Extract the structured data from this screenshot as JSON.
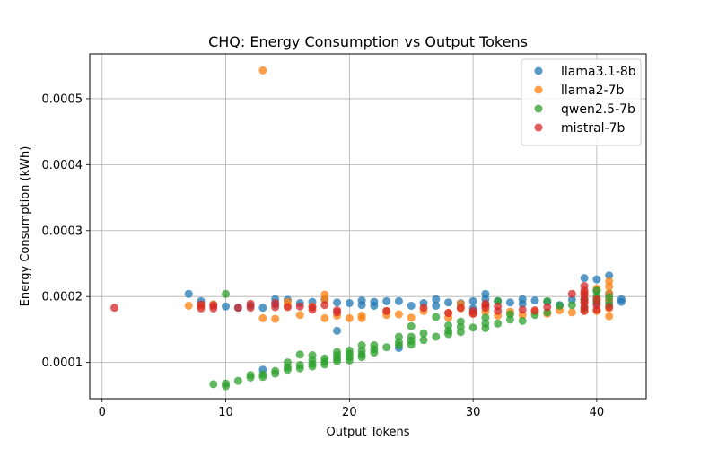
{
  "chart_data": {
    "type": "scatter",
    "title": "CHQ: Energy Consumption vs Output Tokens",
    "xlabel": "Output Tokens",
    "ylabel": "Energy Consumption (kWh)",
    "xlim": [
      -1,
      44
    ],
    "ylim": [
      4.5e-05,
      0.000568
    ],
    "xticks": [
      0,
      10,
      20,
      30,
      40
    ],
    "xtick_labels": [
      "0",
      "10",
      "20",
      "30",
      "40"
    ],
    "yticks": [
      0.0001,
      0.0002,
      0.0003,
      0.0004,
      0.0005
    ],
    "ytick_labels": [
      "0.0001",
      "0.0002",
      "0.0003",
      "0.0004",
      "0.0005"
    ],
    "grid": true,
    "legend_position": "top-right",
    "series": [
      {
        "name": "llama3.1-8b",
        "color": "#1f77b4",
        "points": [
          [
            7,
            0.000204
          ],
          [
            8,
            0.000193
          ],
          [
            9,
            0.000188
          ],
          [
            10,
            0.000185
          ],
          [
            11,
            0.000183
          ],
          [
            12,
            0.000186
          ],
          [
            13,
            0.000183
          ],
          [
            13,
            8.9e-05
          ],
          [
            14,
            0.000196
          ],
          [
            14,
            0.000188
          ],
          [
            15,
            0.000195
          ],
          [
            16,
            0.00019
          ],
          [
            17,
            0.000192
          ],
          [
            18,
            0.000196
          ],
          [
            19,
            0.000148
          ],
          [
            19,
            0.000191
          ],
          [
            20,
            0.00019
          ],
          [
            21,
            0.000194
          ],
          [
            21,
            0.000187
          ],
          [
            22,
            0.000192
          ],
          [
            22,
            0.000186
          ],
          [
            23,
            0.000193
          ],
          [
            24,
            0.000193
          ],
          [
            24,
            0.000122
          ],
          [
            25,
            0.000186
          ],
          [
            26,
            0.00019
          ],
          [
            27,
            0.000196
          ],
          [
            27,
            0.000186
          ],
          [
            28,
            0.000191
          ],
          [
            29,
            0.00019
          ],
          [
            30,
            0.000193
          ],
          [
            30,
            0.000182
          ],
          [
            31,
            0.000204
          ],
          [
            31,
            0.000196
          ],
          [
            31,
            0.000187
          ],
          [
            32,
            0.000193
          ],
          [
            33,
            0.000191
          ],
          [
            34,
            0.000196
          ],
          [
            34,
            0.000189
          ],
          [
            35,
            0.000194
          ],
          [
            36,
            0.000192
          ],
          [
            37,
            0.000187
          ],
          [
            38,
            0.000195
          ],
          [
            39,
            0.000228
          ],
          [
            39,
            0.000205
          ],
          [
            39,
            0.000195
          ],
          [
            40,
            0.000226
          ],
          [
            40,
            0.000209
          ],
          [
            40,
            0.00019
          ],
          [
            41,
            0.000232
          ],
          [
            41,
            0.000204
          ],
          [
            41,
            0.000193
          ],
          [
            42,
            0.000196
          ],
          [
            42,
            0.000192
          ]
        ]
      },
      {
        "name": "llama2-7b",
        "color": "#ff7f0e",
        "points": [
          [
            7,
            0.000186
          ],
          [
            8,
            0.000186
          ],
          [
            9,
            0.000188
          ],
          [
            13,
            0.000543
          ],
          [
            13,
            0.000167
          ],
          [
            14,
            0.000166
          ],
          [
            15,
            0.000192
          ],
          [
            15,
            0.000186
          ],
          [
            16,
            0.000172
          ],
          [
            17,
            0.000185
          ],
          [
            18,
            0.000203
          ],
          [
            18,
            0.000195
          ],
          [
            18,
            0.000167
          ],
          [
            19,
            0.000171
          ],
          [
            20,
            0.000167
          ],
          [
            21,
            0.000171
          ],
          [
            21,
            0.000167
          ],
          [
            23,
            0.000178
          ],
          [
            23,
            0.000172
          ],
          [
            24,
            0.000173
          ],
          [
            25,
            0.000168
          ],
          [
            26,
            0.000178
          ],
          [
            28,
            0.000175
          ],
          [
            28,
            0.000168
          ],
          [
            29,
            0.000189
          ],
          [
            29,
            0.000182
          ],
          [
            30,
            0.000174
          ],
          [
            31,
            0.000186
          ],
          [
            31,
            0.000177
          ],
          [
            32,
            0.000171
          ],
          [
            33,
            0.000177
          ],
          [
            34,
            0.000172
          ],
          [
            35,
            0.000177
          ],
          [
            36,
            0.000174
          ],
          [
            37,
            0.000179
          ],
          [
            38,
            0.000176
          ],
          [
            39,
            0.000205
          ],
          [
            39,
            0.000192
          ],
          [
            39,
            0.000179
          ],
          [
            40,
            0.000212
          ],
          [
            40,
            0.000196
          ],
          [
            40,
            0.000178
          ],
          [
            41,
            0.000223
          ],
          [
            41,
            0.000215
          ],
          [
            41,
            0.000205
          ],
          [
            41,
            0.000195
          ],
          [
            41,
            0.000182
          ],
          [
            41,
            0.00017
          ]
        ]
      },
      {
        "name": "qwen2.5-7b",
        "color": "#2ca02c",
        "points": [
          [
            9,
            6.7e-05
          ],
          [
            10,
            0.000204
          ],
          [
            10,
            6.8e-05
          ],
          [
            10,
            6.4e-05
          ],
          [
            11,
            7.2e-05
          ],
          [
            12,
            8.1e-05
          ],
          [
            12,
            7.7e-05
          ],
          [
            13,
            8.2e-05
          ],
          [
            13,
            7.8e-05
          ],
          [
            14,
            8.7e-05
          ],
          [
            14,
            8.3e-05
          ],
          [
            15,
            0.0001
          ],
          [
            15,
            9.3e-05
          ],
          [
            15,
            8.9e-05
          ],
          [
            16,
            0.000112
          ],
          [
            16,
            9.6e-05
          ],
          [
            16,
            9.1e-05
          ],
          [
            17,
            0.000111
          ],
          [
            17,
            0.000104
          ],
          [
            17,
            9.8e-05
          ],
          [
            17,
            9.4e-05
          ],
          [
            18,
            0.000106
          ],
          [
            18,
            0.000101
          ],
          [
            18,
            9.7e-05
          ],
          [
            19,
            0.000116
          ],
          [
            19,
            0.000111
          ],
          [
            19,
            0.000106
          ],
          [
            19,
            0.000102
          ],
          [
            20,
            0.000118
          ],
          [
            20,
            0.000113
          ],
          [
            20,
            0.000108
          ],
          [
            20,
            0.000103
          ],
          [
            21,
            0.000126
          ],
          [
            21,
            0.000118
          ],
          [
            21,
            0.000112
          ],
          [
            21,
            0.000108
          ],
          [
            22,
            0.000126
          ],
          [
            22,
            0.00012
          ],
          [
            22,
            0.000115
          ],
          [
            23,
            0.000123
          ],
          [
            24,
            0.000139
          ],
          [
            24,
            0.000131
          ],
          [
            24,
            0.000126
          ],
          [
            25,
            0.000155
          ],
          [
            25,
            0.000139
          ],
          [
            25,
            0.000133
          ],
          [
            25,
            0.000127
          ],
          [
            26,
            0.000144
          ],
          [
            26,
            0.000134
          ],
          [
            27,
            0.000169
          ],
          [
            27,
            0.000139
          ],
          [
            28,
            0.000156
          ],
          [
            28,
            0.000148
          ],
          [
            28,
            0.000143
          ],
          [
            29,
            0.000162
          ],
          [
            29,
            0.000154
          ],
          [
            29,
            0.000146
          ],
          [
            30,
            0.000153
          ],
          [
            31,
            0.000168
          ],
          [
            31,
            0.000159
          ],
          [
            31,
            0.000152
          ],
          [
            32,
            0.000193
          ],
          [
            32,
            0.000159
          ],
          [
            33,
            0.000173
          ],
          [
            33,
            0.000165
          ],
          [
            34,
            0.000163
          ],
          [
            35,
            0.000172
          ],
          [
            36,
            0.000193
          ],
          [
            36,
            0.000176
          ],
          [
            37,
            0.000186
          ],
          [
            38,
            0.000187
          ],
          [
            39,
            0.000195
          ],
          [
            39,
            0.000183
          ],
          [
            40,
            0.000209
          ],
          [
            40,
            0.000201
          ],
          [
            40,
            0.000193
          ],
          [
            41,
            0.000199
          ],
          [
            41,
            0.000188
          ]
        ]
      },
      {
        "name": "mistral-7b",
        "color": "#d62728",
        "points": [
          [
            1,
            0.000183
          ],
          [
            8,
            0.000188
          ],
          [
            8,
            0.000182
          ],
          [
            9,
            0.000186
          ],
          [
            9,
            0.000182
          ],
          [
            11,
            0.000183
          ],
          [
            12,
            0.000189
          ],
          [
            12,
            0.000183
          ],
          [
            14,
            0.00019
          ],
          [
            14,
            0.000184
          ],
          [
            15,
            0.000184
          ],
          [
            16,
            0.000185
          ],
          [
            17,
            0.000184
          ],
          [
            17,
            0.00018
          ],
          [
            18,
            0.000187
          ],
          [
            19,
            0.000179
          ],
          [
            19,
            0.000176
          ],
          [
            23,
            0.000178
          ],
          [
            26,
            0.000183
          ],
          [
            28,
            0.000175
          ],
          [
            29,
            0.000183
          ],
          [
            30,
            0.000178
          ],
          [
            30,
            0.000174
          ],
          [
            31,
            0.000189
          ],
          [
            31,
            0.000183
          ],
          [
            32,
            0.000185
          ],
          [
            32,
            0.000178
          ],
          [
            34,
            0.00018
          ],
          [
            35,
            0.000179
          ],
          [
            36,
            0.000184
          ],
          [
            38,
            0.000204
          ],
          [
            39,
            0.000216
          ],
          [
            39,
            0.000209
          ],
          [
            39,
            0.000202
          ],
          [
            39,
            0.000196
          ],
          [
            39,
            0.00019
          ],
          [
            39,
            0.000184
          ],
          [
            39,
            0.000178
          ],
          [
            40,
            0.000196
          ],
          [
            40,
            0.000187
          ],
          [
            40,
            0.00018
          ],
          [
            41,
            0.000184
          ]
        ]
      }
    ]
  }
}
